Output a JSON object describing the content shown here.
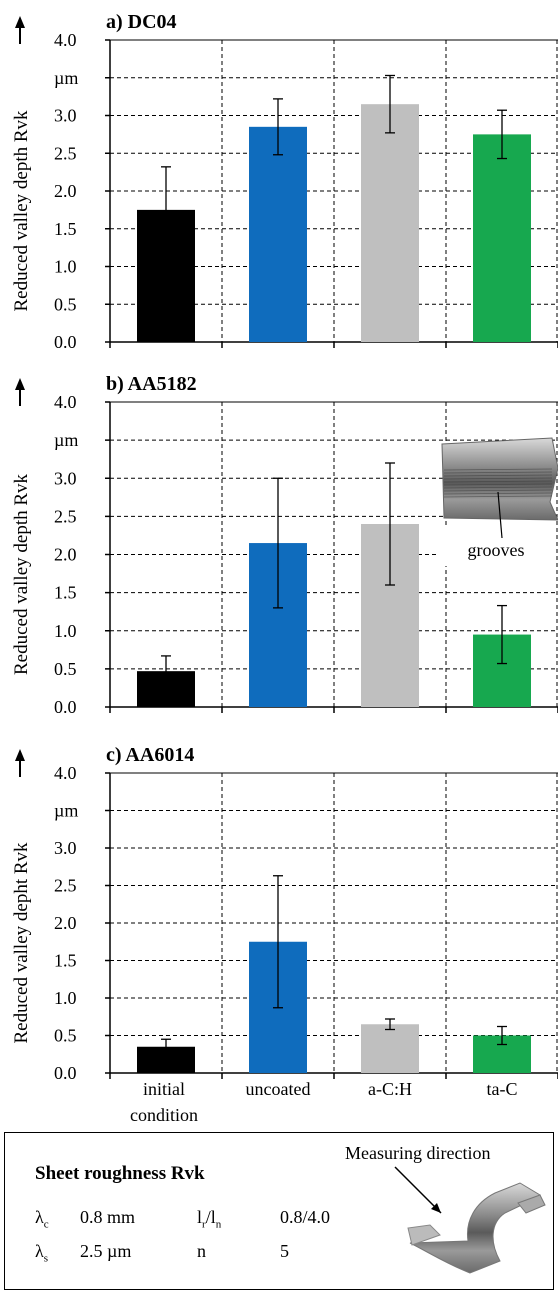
{
  "chart_data": [
    {
      "type": "bar",
      "title": "a) DC04",
      "ylabel": "Reduced valley depth Rvk",
      "yunit": "µm",
      "ylim": [
        0,
        4.0
      ],
      "yticks": [
        "0.0",
        "0.5",
        "1.0",
        "1.5",
        "2.0",
        "2.5",
        "3.0",
        "",
        "4.0"
      ],
      "categories": [
        "initial condition",
        "uncoated",
        "a-C:H",
        "ta-C"
      ],
      "values": [
        1.75,
        2.85,
        3.15,
        2.75
      ],
      "errors": [
        0.57,
        0.37,
        0.38,
        0.32
      ],
      "colors": [
        "#000000",
        "#0f6cbd",
        "#bfbfbf",
        "#17a84f"
      ],
      "grid": true
    },
    {
      "type": "bar",
      "title": "b) AA5182",
      "ylabel": "Reduced valley depth Rvk",
      "yunit": "µm",
      "ylim": [
        0,
        4.0
      ],
      "yticks": [
        "0.0",
        "0.5",
        "1.0",
        "1.5",
        "2.0",
        "2.5",
        "3.0",
        "",
        "4.0"
      ],
      "categories": [
        "initial condition",
        "uncoated",
        "a-C:H",
        "ta-C"
      ],
      "values": [
        0.47,
        2.15,
        2.4,
        0.95
      ],
      "errors": [
        0.2,
        0.85,
        0.8,
        0.38
      ],
      "colors": [
        "#000000",
        "#0f6cbd",
        "#bfbfbf",
        "#17a84f"
      ],
      "grid": true,
      "annotation": "grooves"
    },
    {
      "type": "bar",
      "title": "c) AA6014",
      "ylabel": "Reduced valley depht  Rvk",
      "yunit": "µm",
      "ylim": [
        0,
        4.0
      ],
      "yticks": [
        "0.0",
        "0.5",
        "1.0",
        "1.5",
        "2.0",
        "2.5",
        "3.0",
        "",
        "4.0"
      ],
      "categories": [
        "initial condition",
        "uncoated",
        "a-C:H",
        "ta-C"
      ],
      "values": [
        0.35,
        1.75,
        0.65,
        0.5
      ],
      "errors": [
        0.1,
        0.88,
        0.07,
        0.12
      ],
      "colors": [
        "#000000",
        "#0f6cbd",
        "#bfbfbf",
        "#17a84f"
      ],
      "grid": true
    }
  ],
  "legend": {
    "title": "Sheet roughness Rvk",
    "measuring_label": "Measuring direction",
    "rows": [
      {
        "sym": "λ",
        "sub": "c",
        "val": "0.8 mm",
        "sym2a": "l",
        "sub2a": "r",
        "sym2b": "/l",
        "sub2b": "n",
        "val2": "0.8/4.0"
      },
      {
        "sym": "λ",
        "sub": "s",
        "val": "2.5 µm",
        "sym2a": "n",
        "sub2a": "",
        "sym2b": "",
        "sub2b": "",
        "val2": "5"
      }
    ]
  }
}
